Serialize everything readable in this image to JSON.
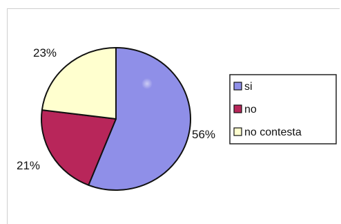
{
  "chart_data": {
    "type": "pie",
    "title": "",
    "slices": [
      {
        "label": "si",
        "value": 56,
        "value_label": "56%",
        "color": "#8F8FE8"
      },
      {
        "label": "no",
        "value": 21,
        "value_label": "21%",
        "color": "#B8265A"
      },
      {
        "label": "no contesta",
        "value": 23,
        "value_label": "23%",
        "color": "#FFFFCF"
      }
    ],
    "legend_position": "right"
  }
}
